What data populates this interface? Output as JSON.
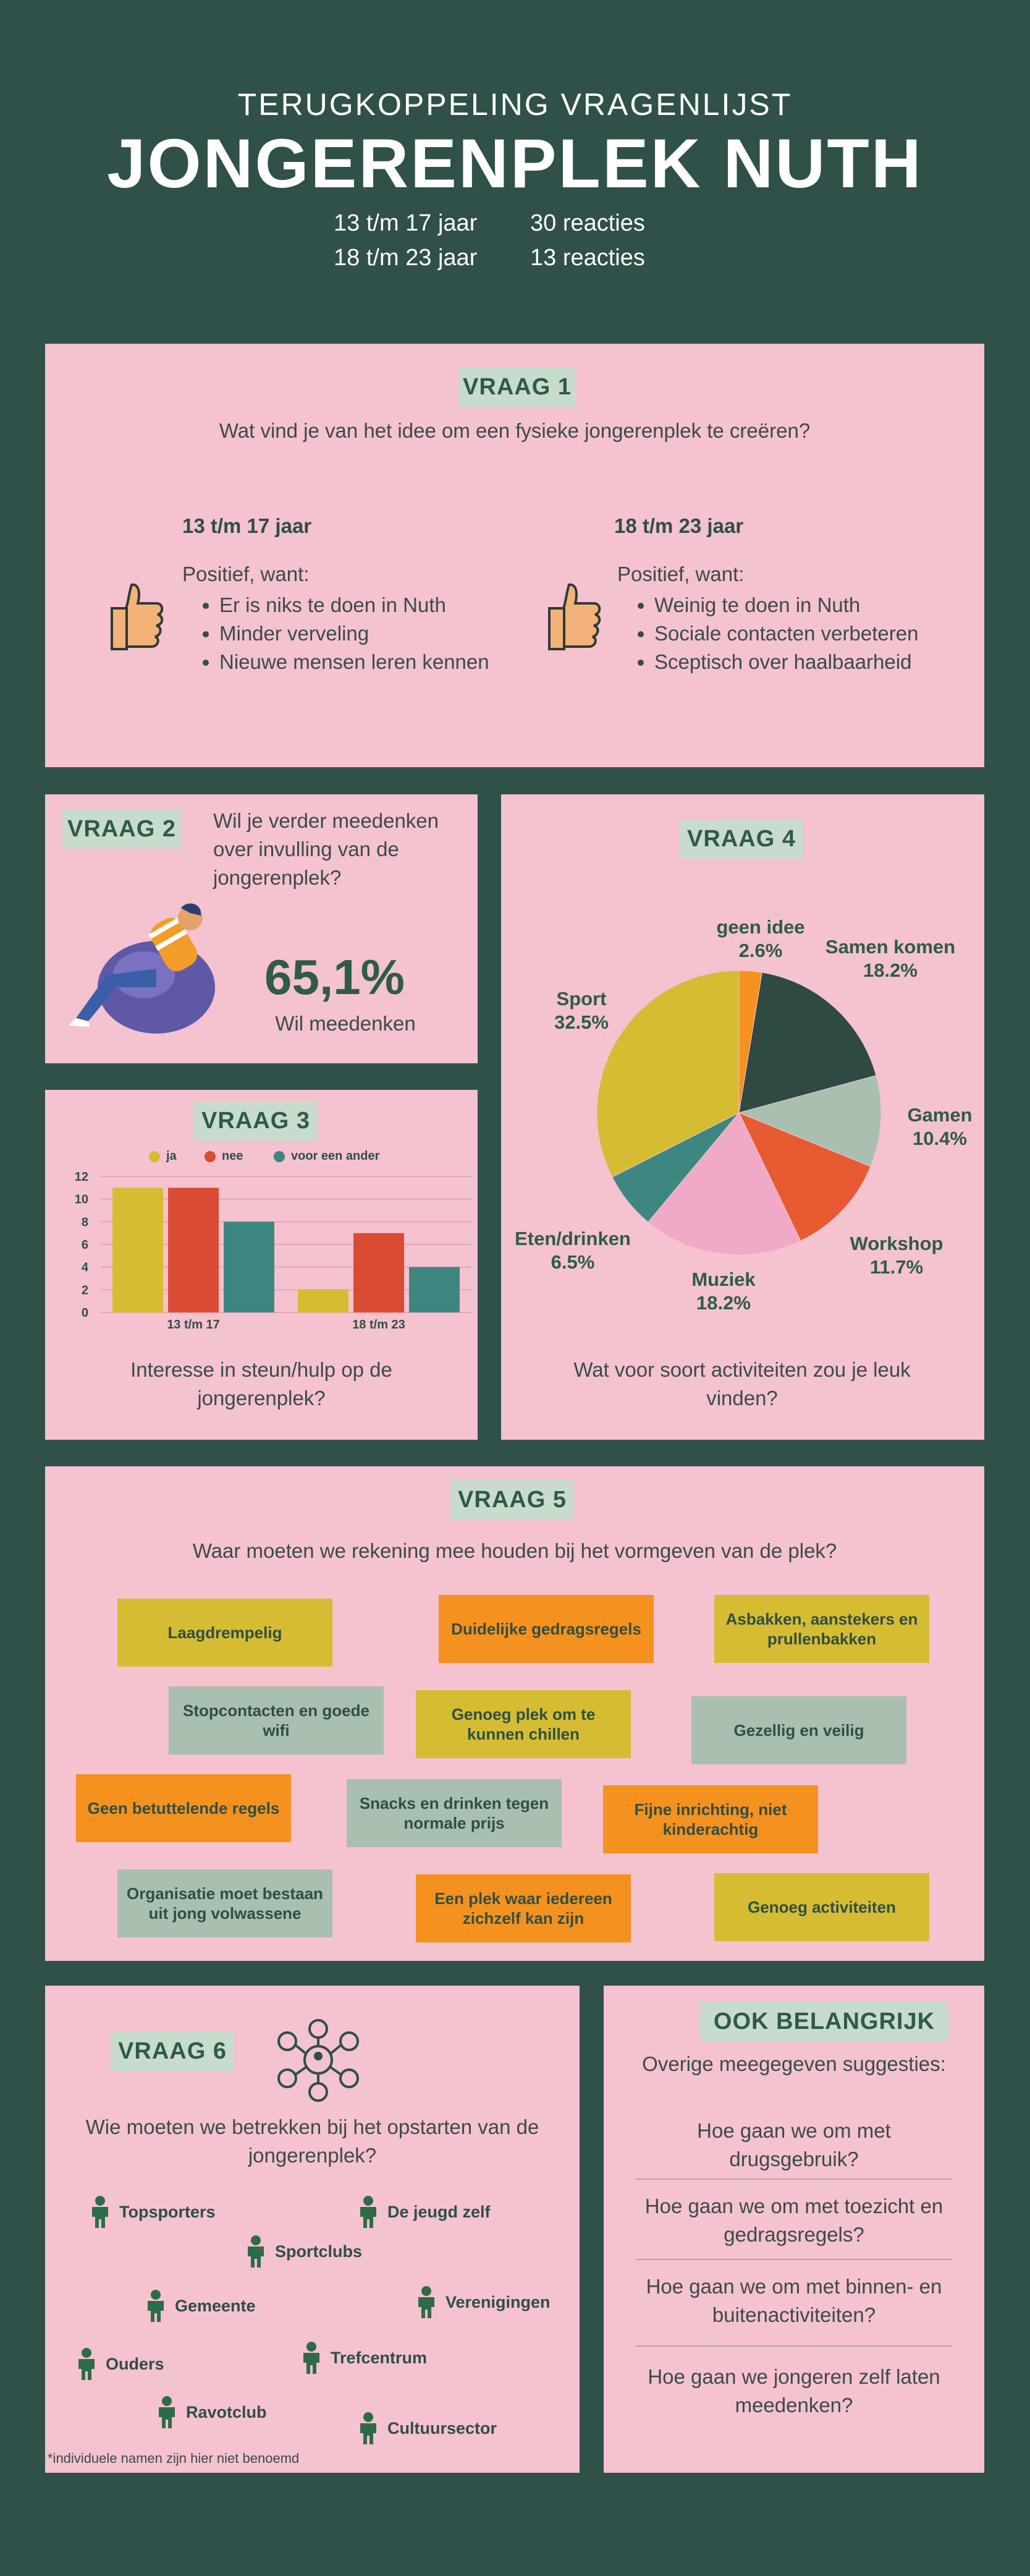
{
  "header": {
    "subtitle": "TERUGKOPPELING VRAGENLIJST",
    "title": "JONGERENPLEK NUTH",
    "stats": [
      {
        "group": "13 t/m 17 jaar",
        "count": "30 reacties"
      },
      {
        "group": "18 t/m 23 jaar",
        "count": "13 reacties"
      }
    ]
  },
  "q1": {
    "tag": "VRAAG 1",
    "question": "Wat vind je van het idee om een fysieke jongerenplek te creëren?",
    "groups": [
      {
        "label": "13 t/m 17 jaar",
        "intro": "Positief, want:",
        "items": [
          "Er is niks te doen in Nuth",
          "Minder verveling",
          "Nieuwe mensen leren kennen"
        ],
        "icon": "thumbs-up-icon"
      },
      {
        "label": "18 t/m 23 jaar",
        "intro": "Positief, want:",
        "items": [
          "Weinig te doen in Nuth",
          "Sociale contacten verbeteren",
          "Sceptisch over haalbaarheid"
        ],
        "icon": "thumbs-up-icon"
      }
    ]
  },
  "q2": {
    "tag": "VRAAG 2",
    "question": "Wil je verder meedenken over invulling van de jongerenplek?",
    "value": "65,1%",
    "caption": "Wil meedenken",
    "illustration": "person-on-beanbag-icon"
  },
  "q3": {
    "tag": "VRAAG 3",
    "caption": "Interesse in steun/hulp op de jongerenplek?",
    "chart_data": {
      "type": "bar",
      "categories": [
        "13 t/m 17",
        "18 t/m 23"
      ],
      "series": [
        {
          "name": "ja",
          "values": [
            11,
            2
          ],
          "color": "#d5bc32"
        },
        {
          "name": "nee",
          "values": [
            11,
            7
          ],
          "color": "#d94c33"
        },
        {
          "name": "voor een ander",
          "values": [
            8,
            4
          ],
          "color": "#3e8680"
        }
      ],
      "ylim": [
        0,
        12
      ],
      "yticks": [
        0,
        2,
        4,
        6,
        8,
        10,
        12
      ],
      "legend": "top",
      "grid": true
    }
  },
  "q4": {
    "tag": "VRAAG 4",
    "caption": "Wat voor soort activiteiten zou je leuk vinden?",
    "chart_data": {
      "type": "pie",
      "slices": [
        {
          "label": "geen idee",
          "value": 2.6,
          "display": "2.6%",
          "color": "#f4911f"
        },
        {
          "label": "Samen komen",
          "value": 18.2,
          "display": "18.2%",
          "color": "#2e4a43"
        },
        {
          "label": "Gamen",
          "value": 10.4,
          "display": "10.4%",
          "color": "#a9bfaf"
        },
        {
          "label": "Workshop",
          "value": 11.7,
          "display": "11.7%",
          "color": "#e85a32"
        },
        {
          "label": "Muziek",
          "value": 18.2,
          "display": "18.2%",
          "color": "#f0a9c6"
        },
        {
          "label": "Eten/drinken",
          "value": 6.5,
          "display": "6.5%",
          "color": "#3e8680"
        },
        {
          "label": "Sport",
          "value": 32.5,
          "display": "32.5%",
          "color": "#d5bc32"
        }
      ]
    }
  },
  "q5": {
    "tag": "VRAAG 5",
    "question": "Waar moeten we rekening mee houden bij het vormgeven van de plek?",
    "cards": [
      {
        "text": "Laagdrempelig",
        "color": "yellow"
      },
      {
        "text": "Duidelijke gedragsregels",
        "color": "orange"
      },
      {
        "text": "Asbakken, aanstekers en prullenbakken",
        "color": "yellow"
      },
      {
        "text": "Stopcontacten en goede wifi",
        "color": "sage"
      },
      {
        "text": "Genoeg plek om te kunnen chillen",
        "color": "yellow"
      },
      {
        "text": "Gezellig en veilig",
        "color": "sage"
      },
      {
        "text": "Geen betuttelende regels",
        "color": "orange"
      },
      {
        "text": "Snacks en drinken tegen normale prijs",
        "color": "sage"
      },
      {
        "text": "Fijne inrichting, niet kinderachtig",
        "color": "orange"
      },
      {
        "text": "Organisatie moet bestaan uit jong volwassene",
        "color": "sage"
      },
      {
        "text": "Een plek waar iedereen zichzelf kan zijn",
        "color": "orange"
      },
      {
        "text": "Genoeg activiteiten",
        "color": "yellow"
      }
    ]
  },
  "q6": {
    "tag": "VRAAG 6",
    "question": "Wie moeten we betrekken bij het opstarten van de jongerenplek?",
    "icon": "network-people-icon",
    "people": [
      "Topsporters",
      "De jeugd zelf",
      "Sportclubs",
      "Gemeente",
      "Verenigingen",
      "Ouders",
      "Trefcentrum",
      "Ravotclub",
      "Cultuursector"
    ],
    "note": "*individuele namen zijn hier niet benoemd"
  },
  "extra": {
    "tag": "OOK BELANGRIJK",
    "intro": "Overige meegegeven suggesties:",
    "suggestions": [
      "Hoe gaan we om met drugsgebruik?",
      "Hoe gaan we om met toezicht en gedragsregels?",
      "Hoe gaan we om met binnen- en buitenactiviteiten?",
      "Hoe gaan we jongeren zelf laten meedenken?"
    ]
  }
}
